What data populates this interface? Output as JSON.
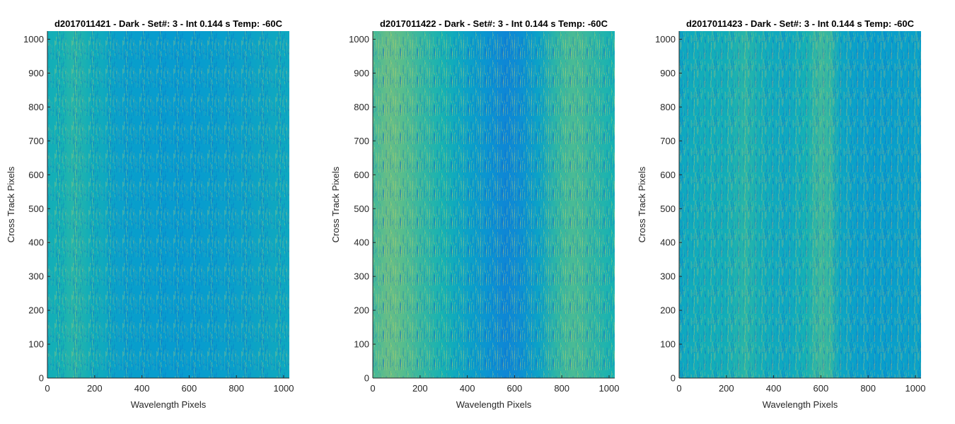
{
  "chart_data": [
    {
      "type": "heatmap",
      "title": "d2017011421 - Dark - Set#: 3 - Int 0.144 s Temp: -60C",
      "xlabel": "Wavelength Pixels",
      "ylabel": "Cross Track Pixels",
      "xlim": [
        0,
        1024
      ],
      "ylim": [
        0,
        1024
      ],
      "xticks": [
        "0",
        "200",
        "400",
        "600",
        "800",
        "1000"
      ],
      "yticks": [
        "0",
        "100",
        "200",
        "300",
        "400",
        "500",
        "600",
        "700",
        "800",
        "900",
        "1000"
      ],
      "colormap": "parula",
      "column_profile": {
        "x": [
          0,
          60,
          120,
          180,
          240,
          300,
          400,
          500,
          600,
          700,
          800,
          900,
          1000,
          1024
        ],
        "level": [
          0.5,
          0.52,
          0.55,
          0.5,
          0.48,
          0.44,
          0.43,
          0.42,
          0.42,
          0.43,
          0.44,
          0.46,
          0.48,
          0.47
        ]
      }
    },
    {
      "type": "heatmap",
      "title": "d2017011422 - Dark - Set#: 3 - Int 0.144 s Temp: -60C",
      "xlabel": "Wavelength Pixels",
      "ylabel": "Cross Track Pixels",
      "xlim": [
        0,
        1024
      ],
      "ylim": [
        0,
        1024
      ],
      "xticks": [
        "0",
        "200",
        "400",
        "600",
        "800",
        "1000"
      ],
      "yticks": [
        "0",
        "100",
        "200",
        "300",
        "400",
        "500",
        "600",
        "700",
        "800",
        "900",
        "1000"
      ],
      "colormap": "parula",
      "column_profile": {
        "x": [
          0,
          60,
          120,
          200,
          300,
          400,
          500,
          560,
          620,
          700,
          780,
          850,
          950,
          1024
        ],
        "level": [
          0.58,
          0.64,
          0.62,
          0.57,
          0.52,
          0.45,
          0.38,
          0.34,
          0.37,
          0.45,
          0.56,
          0.6,
          0.55,
          0.52
        ]
      }
    },
    {
      "type": "heatmap",
      "title": "d2017011423 - Dark - Set#: 3 - Int 0.144 s Temp: -60C",
      "xlabel": "Wavelength Pixels",
      "ylabel": "Cross Track Pixels",
      "xlim": [
        0,
        1024
      ],
      "ylim": [
        0,
        1024
      ],
      "xticks": [
        "0",
        "200",
        "400",
        "600",
        "800",
        "1000"
      ],
      "yticks": [
        "0",
        "100",
        "200",
        "300",
        "400",
        "500",
        "600",
        "700",
        "800",
        "900",
        "1000"
      ],
      "colormap": "parula",
      "column_profile": {
        "x": [
          0,
          100,
          200,
          280,
          350,
          450,
          540,
          600,
          640,
          680,
          750,
          850,
          950,
          1024
        ],
        "level": [
          0.47,
          0.5,
          0.5,
          0.55,
          0.5,
          0.47,
          0.52,
          0.58,
          0.56,
          0.47,
          0.44,
          0.43,
          0.44,
          0.45
        ]
      }
    }
  ]
}
